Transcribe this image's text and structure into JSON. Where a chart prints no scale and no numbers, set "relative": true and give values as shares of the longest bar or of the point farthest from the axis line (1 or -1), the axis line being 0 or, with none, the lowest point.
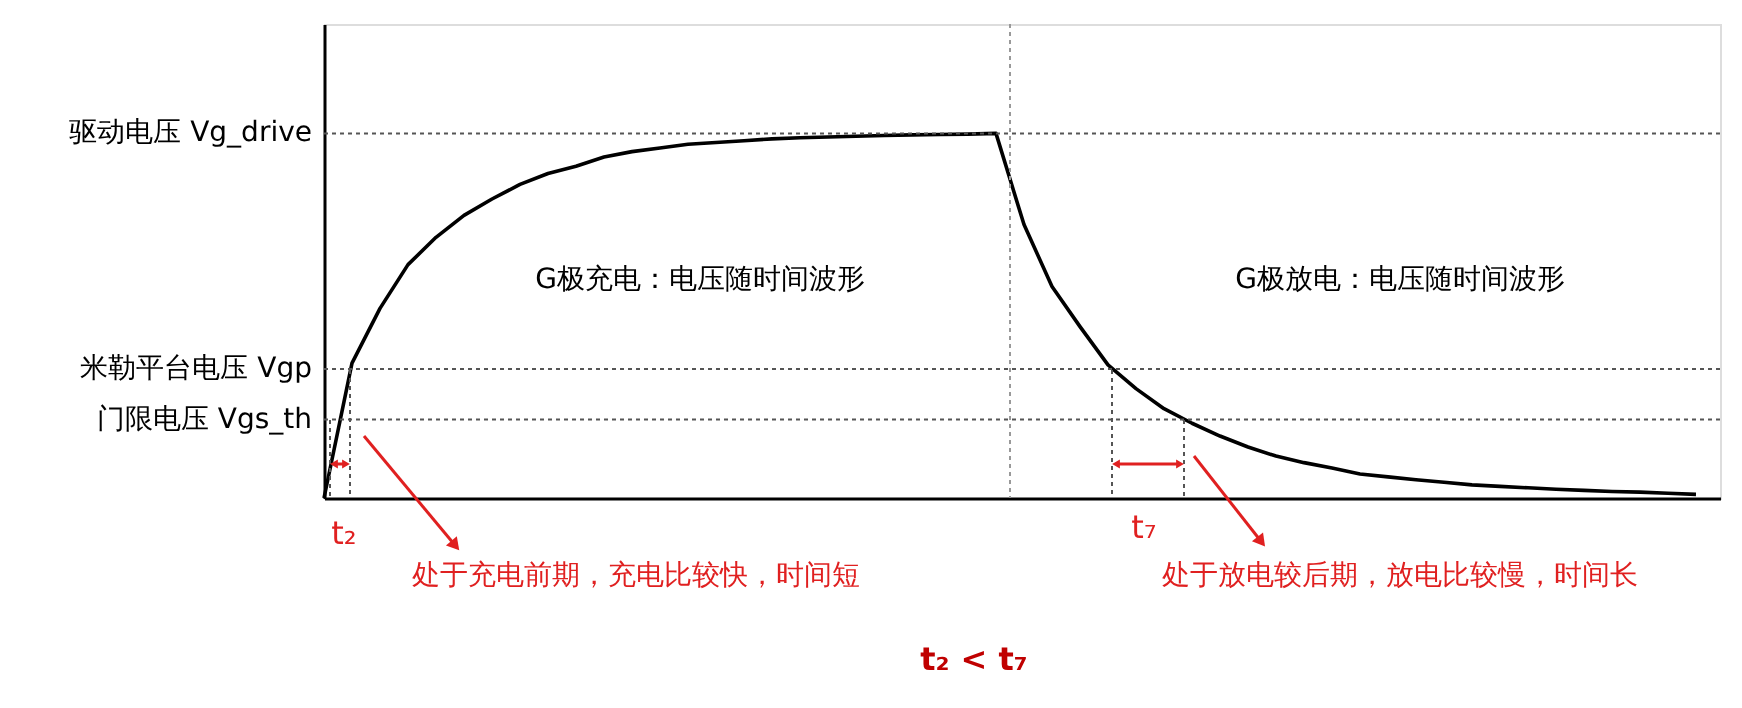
{
  "chart_data": {
    "type": "line",
    "relative": true,
    "categories": [
      null,
      null,
      null,
      null,
      null,
      null,
      null,
      null,
      null,
      null,
      null,
      null,
      null,
      null,
      null,
      null,
      null,
      null,
      null,
      null,
      null,
      null,
      null,
      null,
      null,
      null,
      null,
      null,
      null,
      null,
      null,
      null,
      null,
      null,
      null,
      null,
      null,
      null,
      null,
      null,
      null,
      null,
      null,
      null,
      null,
      null,
      null,
      null,
      null,
      null
    ],
    "series": [
      {
        "color": "#000000",
        "values": [
          0,
          0.37,
          0.52,
          0.64,
          0.715,
          0.775,
          0.82,
          0.86,
          0.89,
          0.91,
          0.935,
          0.95,
          0.96,
          0.97,
          0.975,
          0.98,
          0.985,
          0.988,
          0.99,
          0.992,
          0.994,
          0.996,
          0.997,
          0.998,
          1.0,
          0.75,
          0.58,
          0.47,
          0.365,
          0.3,
          0.245,
          0.205,
          0.17,
          0.14,
          0.115,
          0.097,
          0.082,
          0.066,
          0.058,
          0.05,
          0.043,
          0.036,
          0.032,
          0.028,
          0.024,
          0.021,
          0.018,
          0.016,
          0.013,
          0.01
        ]
      }
    ],
    "ref_lines": [
      {
        "axis": "y",
        "value": 1.0,
        "label": "驱动电压 Vg_drive",
        "color": "#555555",
        "line_style": "dotted"
      },
      {
        "axis": "y",
        "value": 0.354,
        "label": "米勒平台电压 Vgp",
        "color": "#555555",
        "line_style": "dotted"
      },
      {
        "axis": "y",
        "value": 0.215,
        "label": "门限电压 Vgs_th",
        "color": "#555555",
        "line_style": "dotted"
      }
    ],
    "annotations": [
      "G极充电：电压随时间波形",
      "G极放电：电压随时间波形",
      "处于充电前期，充电比较快，时间短",
      "处于放电较后期，放电比较慢，时间长",
      "t₂ < t₇",
      "t₂",
      "t₇"
    ]
  }
}
